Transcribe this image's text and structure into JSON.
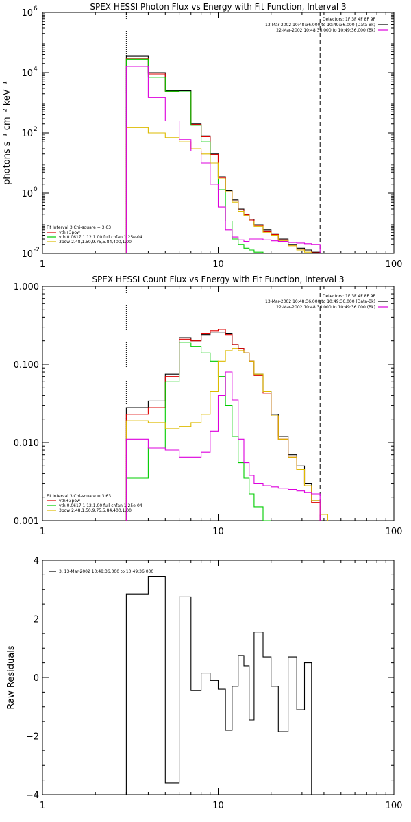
{
  "chart_data": [
    {
      "type": "line",
      "step": true,
      "title": "SPEX HESSI Photon Flux vs Energy with Fit Function, Interval 3",
      "ylabel": "photons s⁻¹ cm⁻² keV⁻¹",
      "xlabel": "",
      "xscale": "log",
      "yscale": "log",
      "xlim": [
        1,
        100
      ],
      "ylim": [
        0.01,
        1000000
      ],
      "xticks": [
        {
          "v": 1,
          "label": "1"
        },
        {
          "v": 10,
          "label": "10"
        },
        {
          "v": 100,
          "label": "100"
        }
      ],
      "yticks": [
        {
          "v": 0.01,
          "label": "10",
          "exp": "-2"
        },
        {
          "v": 1,
          "label": "10",
          "exp": "0"
        },
        {
          "v": 100,
          "label": "10",
          "exp": "2"
        },
        {
          "v": 10000,
          "label": "10",
          "exp": "4"
        },
        {
          "v": 1000000,
          "label": "10",
          "exp": "6"
        }
      ],
      "vlines": [
        {
          "x": 3,
          "style": "dotted"
        },
        {
          "x": 38,
          "style": "dashed"
        }
      ],
      "info": [
        "Detectors: 1F 3F 4F 8F 9F",
        "13-Mar-2002 10:48:36.000 to 10:49:36.000 (Data-Bk)",
        "22-Mar-2002 10:48:36.000 to 10:49:36.000 (Bk)"
      ],
      "info_colors": [
        "#000000",
        "#000000",
        "#dd00dd"
      ],
      "fit_legend": [
        "Fit Interval 3   Chi-square = 3.63",
        "vth+3pow",
        "vth 0.0617,1.12,1.00  full chfan 1.25e-04",
        "3pow 2.48,1.50,9.75,5.84,400,1.00"
      ],
      "fit_legend_colors": [
        "#000000",
        "#dd0000",
        "#00cc00",
        "#ddbb00"
      ],
      "series": [
        {
          "color": "#000000",
          "edges": [
            3,
            4,
            5,
            6,
            7,
            8,
            9,
            10,
            11,
            12,
            13,
            14,
            15,
            16,
            18,
            20,
            22,
            25,
            28,
            31,
            34,
            38
          ],
          "values": [
            35000,
            10000,
            2500,
            2500,
            200,
            80,
            20,
            3.5,
            1.2,
            0.6,
            0.3,
            0.2,
            0.14,
            0.09,
            0.06,
            0.045,
            0.03,
            0.02,
            0.015,
            0.013,
            0.011
          ]
        },
        {
          "color": "#dd0000",
          "edges": [
            3,
            4,
            5,
            6,
            7,
            8,
            9,
            10,
            11,
            12,
            13,
            14,
            15,
            16,
            18,
            20,
            22,
            25,
            28,
            31,
            34,
            38
          ],
          "values": [
            30000,
            9000,
            2300,
            2300,
            190,
            75,
            19,
            3.3,
            1.1,
            0.55,
            0.28,
            0.19,
            0.13,
            0.085,
            0.055,
            0.042,
            0.028,
            0.019,
            0.014,
            0.012,
            0.0105
          ]
        },
        {
          "color": "#00cc00",
          "edges": [
            3,
            4,
            5,
            6,
            7,
            8,
            9,
            10,
            11,
            12,
            13,
            14,
            15,
            16,
            18,
            20
          ],
          "values": [
            28000,
            7000,
            2400,
            2300,
            180,
            50,
            10,
            1.3,
            0.12,
            0.03,
            0.02,
            0.015,
            0.013,
            0.011,
            0.01
          ]
        },
        {
          "color": "#ddbb00",
          "edges": [
            3,
            4,
            5,
            6,
            7,
            8,
            9,
            10,
            11,
            12,
            13,
            14,
            15,
            16,
            18,
            20,
            22,
            25,
            28,
            31,
            34,
            38
          ],
          "values": [
            150,
            100,
            70,
            50,
            30,
            20,
            10,
            3,
            1.1,
            0.5,
            0.25,
            0.18,
            0.12,
            0.08,
            0.05,
            0.04,
            0.026,
            0.018,
            0.013,
            0.011,
            0.01
          ]
        },
        {
          "color": "#dd00dd",
          "edges": [
            3,
            4,
            5,
            6,
            7,
            8,
            9,
            10,
            11,
            12,
            13,
            14,
            15,
            16,
            18,
            20,
            22,
            25,
            28,
            31,
            34,
            38
          ],
          "values": [
            16000,
            1500,
            250,
            60,
            25,
            10,
            2,
            0.35,
            0.06,
            0.035,
            0.028,
            0.025,
            0.03,
            0.03,
            0.028,
            0.026,
            0.025,
            0.023,
            0.022,
            0.021,
            0.02
          ]
        }
      ]
    },
    {
      "type": "line",
      "step": true,
      "title": "SPEX HESSI Count Flux vs Energy with Fit Function, Interval 3",
      "ylabel": "",
      "xlabel": "",
      "xscale": "log",
      "yscale": "log",
      "xlim": [
        1,
        100
      ],
      "ylim": [
        0.001,
        1
      ],
      "xticks": [
        {
          "v": 1,
          "label": "1"
        },
        {
          "v": 10,
          "label": "10"
        },
        {
          "v": 100,
          "label": "100"
        }
      ],
      "yticks": [
        {
          "v": 0.001,
          "label": "0.001"
        },
        {
          "v": 0.01,
          "label": "0.010"
        },
        {
          "v": 0.1,
          "label": "0.100"
        },
        {
          "v": 1,
          "label": "1.000"
        }
      ],
      "vlines": [
        {
          "x": 3,
          "style": "dotted"
        },
        {
          "x": 38,
          "style": "dashed"
        }
      ],
      "info": [
        "Detectors: 1F 3F 4F 8F 9F",
        "13-Mar-2002 10:48:36.000 to 10:49:36.000 (Data-Bk)",
        "22-Mar-2002 10:48:36.000 to 10:49:36.000 (Bk)"
      ],
      "info_colors": [
        "#000000",
        "#000000",
        "#dd00dd"
      ],
      "fit_legend": [
        "Fit Interval 3   Chi-square = 3.63",
        "vth+3pow",
        "vth 0.0617,1.12,1.00  full chfan 1.25e-04",
        "3pow 2.48,1.50,9.75,5.84,400,1.00"
      ],
      "fit_legend_colors": [
        "#000000",
        "#dd0000",
        "#00cc00",
        "#ddbb00"
      ],
      "series": [
        {
          "color": "#000000",
          "edges": [
            3,
            4,
            5,
            6,
            7,
            8,
            9,
            10,
            11,
            12,
            13,
            14,
            15,
            16,
            18,
            20,
            22,
            25,
            28,
            31,
            34,
            38
          ],
          "values": [
            0.028,
            0.034,
            0.075,
            0.22,
            0.2,
            0.24,
            0.26,
            0.26,
            0.25,
            0.18,
            0.16,
            0.14,
            0.11,
            0.075,
            0.045,
            0.023,
            0.012,
            0.007,
            0.005,
            0.003,
            0.0018
          ]
        },
        {
          "color": "#dd0000",
          "edges": [
            3,
            4,
            5,
            6,
            7,
            8,
            9,
            10,
            11,
            12,
            13,
            14,
            15,
            16,
            18,
            20,
            22,
            25,
            28,
            31,
            34,
            38
          ],
          "values": [
            0.023,
            0.028,
            0.07,
            0.21,
            0.2,
            0.25,
            0.27,
            0.28,
            0.24,
            0.18,
            0.16,
            0.14,
            0.11,
            0.072,
            0.043,
            0.022,
            0.011,
            0.0065,
            0.0045,
            0.0028,
            0.0017
          ]
        },
        {
          "color": "#00cc00",
          "edges": [
            3,
            4,
            5,
            6,
            7,
            8,
            9,
            10,
            11,
            12,
            13,
            14,
            15,
            16,
            18,
            20
          ],
          "values": [
            0.0035,
            0.0085,
            0.06,
            0.19,
            0.17,
            0.14,
            0.11,
            0.07,
            0.03,
            0.012,
            0.0055,
            0.0035,
            0.0022,
            0.0015,
            0.001
          ]
        },
        {
          "color": "#ddbb00",
          "edges": [
            3,
            4,
            5,
            6,
            7,
            8,
            9,
            10,
            11,
            12,
            13,
            14,
            15,
            16,
            18,
            20,
            22,
            25,
            28,
            31,
            34,
            38,
            42
          ],
          "values": [
            0.019,
            0.018,
            0.015,
            0.016,
            0.018,
            0.023,
            0.045,
            0.11,
            0.15,
            0.16,
            0.15,
            0.14,
            0.11,
            0.075,
            0.045,
            0.022,
            0.011,
            0.0065,
            0.0045,
            0.0028,
            0.0018,
            0.0012
          ]
        },
        {
          "color": "#dd00dd",
          "edges": [
            3,
            4,
            5,
            6,
            7,
            8,
            9,
            10,
            11,
            12,
            13,
            14,
            15,
            16,
            18,
            20,
            22,
            25,
            28,
            31,
            34,
            38
          ],
          "values": [
            0.011,
            0.0085,
            0.008,
            0.0065,
            0.0065,
            0.0075,
            0.014,
            0.04,
            0.08,
            0.035,
            0.011,
            0.0055,
            0.0038,
            0.003,
            0.0028,
            0.0027,
            0.0026,
            0.0025,
            0.0024,
            0.0023,
            0.0022
          ]
        }
      ]
    },
    {
      "type": "line",
      "step": true,
      "title": "",
      "ylabel": "Raw Residuals",
      "xlabel": "",
      "xscale": "log",
      "yscale": "linear",
      "xlim": [
        1,
        100
      ],
      "ylim": [
        -4,
        4
      ],
      "xticks": [
        {
          "v": 1,
          "label": "1"
        },
        {
          "v": 10,
          "label": "10"
        },
        {
          "v": 100,
          "label": "100"
        }
      ],
      "yticks": [
        {
          "v": -4,
          "label": "−4"
        },
        {
          "v": -2,
          "label": "−2"
        },
        {
          "v": 0,
          "label": "0"
        },
        {
          "v": 2,
          "label": "2"
        },
        {
          "v": 4,
          "label": "4"
        }
      ],
      "legend": "3, 13-Mar-2002 10:48:36.000 to 10:49:36.000",
      "series": [
        {
          "color": "#000000",
          "edges": [
            3,
            4,
            5,
            6,
            7,
            8,
            9,
            10,
            11,
            12,
            13,
            14,
            15,
            16,
            18,
            20,
            22,
            25,
            28,
            31,
            34,
            38
          ],
          "values": [
            2.85,
            3.45,
            -3.6,
            2.75,
            -0.45,
            0.15,
            -0.1,
            -0.4,
            -1.8,
            -0.3,
            0.75,
            0.4,
            -1.45,
            1.55,
            0.7,
            -0.3,
            -1.85,
            0.7,
            -1.1,
            0.5,
            -4.0
          ]
        }
      ]
    }
  ]
}
